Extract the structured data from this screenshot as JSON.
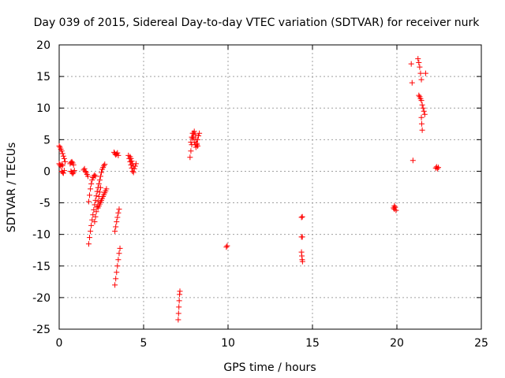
{
  "chart_data": {
    "type": "scatter",
    "title": "Day 039 of 2015, Sidereal Day-to-day VTEC variation (SDTVAR) for receiver nurk",
    "xlabel": "GPS time / hours",
    "ylabel": "SDTVAR / TECUs",
    "xlim": [
      0,
      25
    ],
    "ylim": [
      -25,
      20
    ],
    "xticks": [
      0,
      5,
      10,
      15,
      20,
      25
    ],
    "yticks": [
      -25,
      -20,
      -15,
      -10,
      -5,
      0,
      5,
      10,
      15,
      20
    ],
    "grid": true,
    "legend": "none",
    "marker": "plus",
    "color": "#ff0000",
    "series": [
      {
        "name": "SDTVAR",
        "points": [
          [
            0.0,
            4.0
          ],
          [
            0.05,
            3.8
          ],
          [
            0.1,
            3.5
          ],
          [
            0.15,
            3.2
          ],
          [
            0.2,
            2.8
          ],
          [
            0.25,
            2.4
          ],
          [
            0.3,
            2.0
          ],
          [
            0.35,
            1.5
          ],
          [
            0.0,
            1.2
          ],
          [
            0.05,
            1.0
          ],
          [
            0.1,
            0.8
          ],
          [
            0.15,
            1.1
          ],
          [
            0.2,
            0.9
          ],
          [
            0.15,
            0.0
          ],
          [
            0.2,
            -0.2
          ],
          [
            0.25,
            -0.3
          ],
          [
            0.3,
            0.1
          ],
          [
            0.65,
            1.2
          ],
          [
            0.7,
            1.4
          ],
          [
            0.75,
            1.5
          ],
          [
            0.8,
            1.3
          ],
          [
            0.85,
            1.0
          ],
          [
            0.7,
            0.0
          ],
          [
            0.75,
            -0.2
          ],
          [
            0.8,
            -0.4
          ],
          [
            0.85,
            -0.2
          ],
          [
            0.9,
            0.1
          ],
          [
            1.45,
            0.2
          ],
          [
            1.5,
            0.4
          ],
          [
            1.55,
            0.0
          ],
          [
            1.6,
            -0.2
          ],
          [
            1.65,
            -0.5
          ],
          [
            1.7,
            -0.8
          ],
          [
            1.75,
            -4.8
          ],
          [
            1.8,
            -3.8
          ],
          [
            1.85,
            -2.8
          ],
          [
            1.9,
            -2.0
          ],
          [
            1.95,
            -1.4
          ],
          [
            2.0,
            -1.0
          ],
          [
            2.05,
            -0.8
          ],
          [
            2.1,
            -0.6
          ],
          [
            2.15,
            -0.8
          ],
          [
            1.75,
            -11.5
          ],
          [
            1.8,
            -10.5
          ],
          [
            1.85,
            -9.5
          ],
          [
            1.9,
            -8.6
          ],
          [
            1.95,
            -7.7
          ],
          [
            2.0,
            -6.9
          ],
          [
            2.05,
            -6.1
          ],
          [
            2.1,
            -5.3
          ],
          [
            2.15,
            -4.6
          ],
          [
            2.2,
            -3.9
          ],
          [
            2.25,
            -3.2
          ],
          [
            2.3,
            -2.6
          ],
          [
            2.35,
            -2.0
          ],
          [
            2.4,
            -1.4
          ],
          [
            2.45,
            -0.8
          ],
          [
            2.5,
            -0.2
          ],
          [
            2.55,
            0.3
          ],
          [
            2.6,
            0.6
          ],
          [
            2.65,
            0.9
          ],
          [
            2.7,
            1.1
          ],
          [
            2.1,
            -8.0
          ],
          [
            2.15,
            -7.2
          ],
          [
            2.2,
            -6.4
          ],
          [
            2.25,
            -5.6
          ],
          [
            2.3,
            -4.8
          ],
          [
            2.35,
            -4.0
          ],
          [
            2.4,
            -3.3
          ],
          [
            2.45,
            -2.6
          ],
          [
            2.3,
            -5.8
          ],
          [
            2.35,
            -5.5
          ],
          [
            2.4,
            -5.2
          ],
          [
            2.45,
            -4.9
          ],
          [
            2.5,
            -4.6
          ],
          [
            2.55,
            -4.3
          ],
          [
            2.6,
            -4.0
          ],
          [
            2.65,
            -3.7
          ],
          [
            2.7,
            -3.4
          ],
          [
            2.75,
            -3.1
          ],
          [
            2.8,
            -2.8
          ],
          [
            3.25,
            3.0
          ],
          [
            3.3,
            2.8
          ],
          [
            3.35,
            2.6
          ],
          [
            3.4,
            2.7
          ],
          [
            3.45,
            2.9
          ],
          [
            3.5,
            2.5
          ],
          [
            3.3,
            -9.5
          ],
          [
            3.35,
            -8.8
          ],
          [
            3.4,
            -8.0
          ],
          [
            3.45,
            -7.3
          ],
          [
            3.5,
            -6.6
          ],
          [
            3.55,
            -6.0
          ],
          [
            3.3,
            -18.0
          ],
          [
            3.35,
            -17.0
          ],
          [
            3.4,
            -16.0
          ],
          [
            3.45,
            -15.0
          ],
          [
            3.5,
            -14.0
          ],
          [
            3.55,
            -13.0
          ],
          [
            3.6,
            -12.2
          ],
          [
            4.1,
            2.5
          ],
          [
            4.15,
            2.0
          ],
          [
            4.2,
            1.5
          ],
          [
            4.25,
            1.0
          ],
          [
            4.3,
            0.5
          ],
          [
            4.35,
            0.0
          ],
          [
            4.4,
            -0.2
          ],
          [
            4.2,
            2.3
          ],
          [
            4.25,
            2.0
          ],
          [
            4.3,
            1.6
          ],
          [
            4.35,
            1.2
          ],
          [
            4.4,
            0.8
          ],
          [
            4.45,
            0.4
          ],
          [
            4.5,
            0.8
          ],
          [
            4.55,
            1.2
          ],
          [
            7.05,
            -23.5
          ],
          [
            7.07,
            -22.5
          ],
          [
            7.09,
            -21.5
          ],
          [
            7.11,
            -20.5
          ],
          [
            7.13,
            -19.5
          ],
          [
            7.15,
            -19.0
          ],
          [
            7.75,
            2.2
          ],
          [
            7.8,
            3.2
          ],
          [
            7.85,
            4.2
          ],
          [
            7.9,
            5.2
          ],
          [
            7.95,
            6.0
          ],
          [
            8.0,
            6.3
          ],
          [
            8.05,
            5.8
          ],
          [
            8.1,
            5.0
          ],
          [
            8.15,
            4.4
          ],
          [
            8.2,
            4.0
          ],
          [
            7.8,
            4.6
          ],
          [
            7.85,
            5.4
          ],
          [
            7.9,
            6.0
          ],
          [
            7.95,
            5.4
          ],
          [
            8.0,
            4.6
          ],
          [
            8.05,
            4.2
          ],
          [
            8.1,
            3.8
          ],
          [
            8.15,
            4.2
          ],
          [
            8.2,
            5.0
          ],
          [
            8.25,
            5.6
          ],
          [
            8.3,
            6.0
          ],
          [
            9.9,
            -12.0
          ],
          [
            9.95,
            -11.8
          ],
          [
            14.35,
            -7.3
          ],
          [
            14.4,
            -7.2
          ],
          [
            14.35,
            -10.4
          ],
          [
            14.4,
            -10.4
          ],
          [
            14.35,
            -12.8
          ],
          [
            14.37,
            -13.4
          ],
          [
            14.39,
            -14.0
          ],
          [
            14.41,
            -14.3
          ],
          [
            19.8,
            -5.8
          ],
          [
            19.85,
            -6.0
          ],
          [
            19.9,
            -5.7
          ],
          [
            19.95,
            -6.2
          ],
          [
            19.85,
            -5.5
          ],
          [
            20.85,
            17.0
          ],
          [
            20.9,
            14.0
          ],
          [
            20.95,
            1.7
          ],
          [
            21.25,
            17.8
          ],
          [
            21.3,
            17.2
          ],
          [
            21.35,
            16.5
          ],
          [
            21.4,
            15.5
          ],
          [
            21.45,
            14.5
          ],
          [
            21.3,
            12.0
          ],
          [
            21.35,
            11.8
          ],
          [
            21.4,
            11.5
          ],
          [
            21.45,
            11.2
          ],
          [
            21.5,
            10.5
          ],
          [
            21.55,
            10.0
          ],
          [
            21.6,
            9.5
          ],
          [
            21.65,
            9.0
          ],
          [
            21.45,
            8.5
          ],
          [
            21.47,
            7.5
          ],
          [
            21.5,
            6.5
          ],
          [
            21.7,
            15.5
          ],
          [
            22.3,
            0.5
          ],
          [
            22.35,
            0.7
          ],
          [
            22.4,
            0.4
          ],
          [
            22.45,
            0.6
          ]
        ]
      }
    ]
  }
}
